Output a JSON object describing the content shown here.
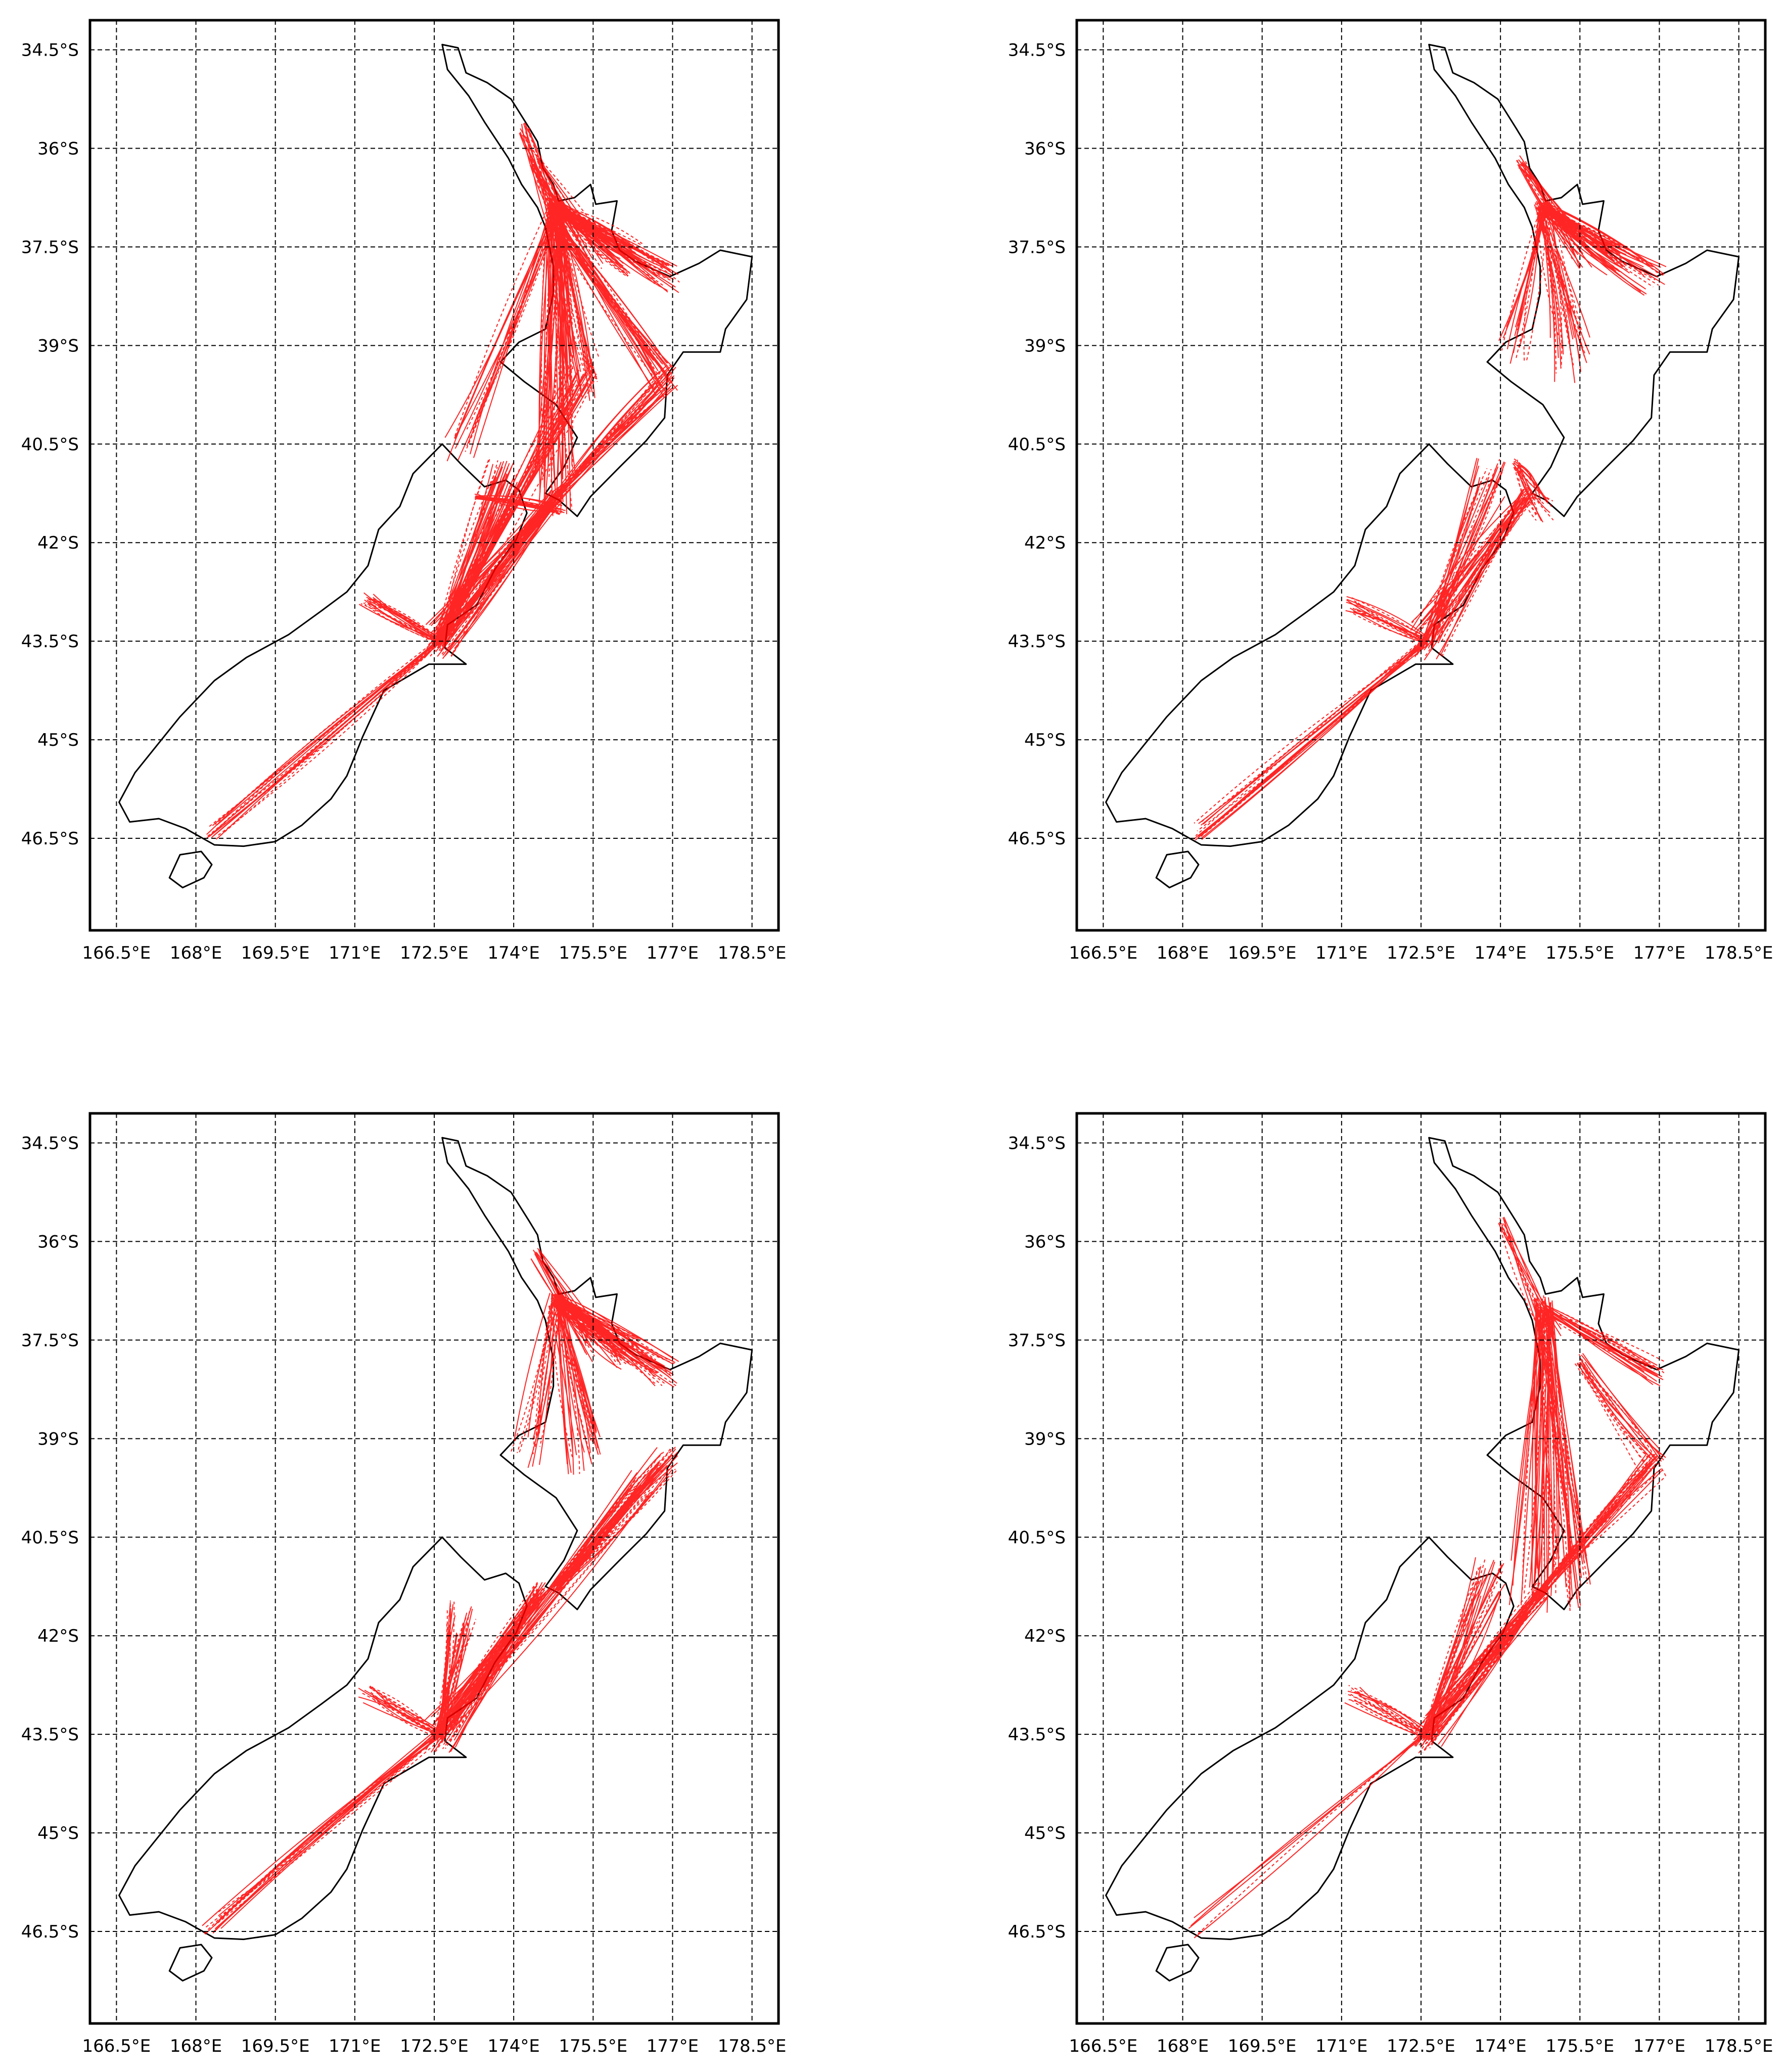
{
  "figure": {
    "panel_count": 4,
    "layout": "2x2 grid"
  },
  "axes": {
    "lon_ticks": [
      "166.5°E",
      "168°E",
      "169.5°E",
      "171°E",
      "172.5°E",
      "174°E",
      "175.5°E",
      "177°E",
      "178.5°E"
    ],
    "lat_ticks": [
      "34.5°S",
      "36°S",
      "37.5°S",
      "39°S",
      "40.5°S",
      "42°S",
      "43.5°S",
      "45°S",
      "46.5°S"
    ]
  },
  "chart_data": [
    {
      "type": "map",
      "panel": "top-left",
      "region": "New Zealand",
      "lon_range": [
        166.0,
        179.0
      ],
      "lat_range": [
        -47.9,
        -34.05
      ],
      "gridlines": true,
      "route_color": "#ff0000",
      "coastline_color": "#000000",
      "route_density": "dense",
      "route_coverage": "North Island and South Island",
      "routes": [
        {
          "from": [
            174.8,
            -36.9
          ],
          "to": [
            176.2,
            -37.7
          ],
          "n": 40,
          "spread": 0.25
        },
        {
          "from": [
            174.8,
            -36.9
          ],
          "to": [
            176.9,
            -38.0
          ],
          "n": 30,
          "spread": 0.25
        },
        {
          "from": [
            174.8,
            -36.9
          ],
          "to": [
            175.3,
            -39.5
          ],
          "n": 30,
          "spread": 0.35
        },
        {
          "from": [
            174.4,
            -36.2
          ],
          "to": [
            175.5,
            -37.6
          ],
          "n": 20,
          "spread": 0.25
        },
        {
          "from": [
            174.8,
            -36.9
          ],
          "to": [
            174.8,
            -41.2
          ],
          "n": 35,
          "spread": 0.4
        },
        {
          "from": [
            174.8,
            -37.2
          ],
          "to": [
            176.9,
            -39.5
          ],
          "n": 25,
          "spread": 0.3
        },
        {
          "from": [
            174.8,
            -41.3
          ],
          "to": [
            176.9,
            -39.5
          ],
          "n": 25,
          "spread": 0.2
        },
        {
          "from": [
            174.8,
            -41.3
          ],
          "to": [
            172.6,
            -43.5
          ],
          "n": 50,
          "spread": 0.3
        },
        {
          "from": [
            172.6,
            -43.5
          ],
          "to": [
            173.8,
            -41.0
          ],
          "n": 30,
          "spread": 0.3
        },
        {
          "from": [
            172.6,
            -43.5
          ],
          "to": [
            171.2,
            -42.9
          ],
          "n": 20,
          "spread": 0.15
        },
        {
          "from": [
            172.6,
            -43.5
          ],
          "to": [
            168.3,
            -46.4
          ],
          "n": 15,
          "spread": 0.12
        },
        {
          "from": [
            172.6,
            -43.5
          ],
          "to": [
            175.3,
            -39.5
          ],
          "n": 25,
          "spread": 0.3
        },
        {
          "from": [
            174.8,
            -36.9
          ],
          "to": [
            173.0,
            -40.5
          ],
          "n": 15,
          "spread": 0.3
        },
        {
          "from": [
            174.2,
            -35.7
          ],
          "to": [
            174.8,
            -37.0
          ],
          "n": 15,
          "spread": 0.25
        },
        {
          "from": [
            173.3,
            -41.3
          ],
          "to": [
            174.9,
            -41.5
          ],
          "n": 15,
          "spread": 0.1
        }
      ]
    },
    {
      "type": "map",
      "panel": "top-right",
      "region": "New Zealand",
      "lon_range": [
        166.0,
        179.0
      ],
      "lat_range": [
        -47.9,
        -34.05
      ],
      "gridlines": true,
      "route_color": "#ff0000",
      "coastline_color": "#000000",
      "route_density": "sparse",
      "route_coverage": "Upper North Island; Cook Strait to Southland",
      "routes": [
        {
          "from": [
            174.8,
            -36.9
          ],
          "to": [
            176.2,
            -37.7
          ],
          "n": 30,
          "spread": 0.25
        },
        {
          "from": [
            174.8,
            -36.9
          ],
          "to": [
            176.9,
            -38.0
          ],
          "n": 20,
          "spread": 0.25
        },
        {
          "from": [
            174.8,
            -36.9
          ],
          "to": [
            175.3,
            -39.2
          ],
          "n": 25,
          "spread": 0.4
        },
        {
          "from": [
            174.8,
            -36.9
          ],
          "to": [
            174.2,
            -39.0
          ],
          "n": 15,
          "spread": 0.3
        },
        {
          "from": [
            174.4,
            -36.2
          ],
          "to": [
            175.5,
            -37.6
          ],
          "n": 15,
          "spread": 0.25
        },
        {
          "from": [
            174.5,
            -41.3
          ],
          "to": [
            172.6,
            -43.5
          ],
          "n": 30,
          "spread": 0.3
        },
        {
          "from": [
            172.6,
            -43.5
          ],
          "to": [
            173.8,
            -41.0
          ],
          "n": 20,
          "spread": 0.3
        },
        {
          "from": [
            172.6,
            -43.5
          ],
          "to": [
            171.2,
            -42.9
          ],
          "n": 15,
          "spread": 0.15
        },
        {
          "from": [
            172.6,
            -43.5
          ],
          "to": [
            168.3,
            -46.4
          ],
          "n": 15,
          "spread": 0.15
        },
        {
          "from": [
            174.3,
            -40.8
          ],
          "to": [
            174.8,
            -41.5
          ],
          "n": 20,
          "spread": 0.2
        }
      ]
    },
    {
      "type": "map",
      "panel": "bottom-left",
      "region": "New Zealand",
      "lon_range": [
        166.0,
        179.0
      ],
      "lat_range": [
        -47.9,
        -34.05
      ],
      "gridlines": true,
      "route_color": "#ff0000",
      "coastline_color": "#000000",
      "route_density": "medium",
      "route_coverage": "Upper North Island; Cook Strait to Hawke's Bay and Southland",
      "routes": [
        {
          "from": [
            174.8,
            -36.9
          ],
          "to": [
            176.2,
            -37.7
          ],
          "n": 35,
          "spread": 0.25
        },
        {
          "from": [
            174.8,
            -36.9
          ],
          "to": [
            176.9,
            -38.0
          ],
          "n": 30,
          "spread": 0.25
        },
        {
          "from": [
            174.8,
            -36.9
          ],
          "to": [
            175.3,
            -39.2
          ],
          "n": 25,
          "spread": 0.35
        },
        {
          "from": [
            174.8,
            -36.9
          ],
          "to": [
            174.2,
            -39.2
          ],
          "n": 15,
          "spread": 0.3
        },
        {
          "from": [
            174.4,
            -36.2
          ],
          "to": [
            175.5,
            -37.6
          ],
          "n": 15,
          "spread": 0.25
        },
        {
          "from": [
            174.8,
            -41.3
          ],
          "to": [
            176.9,
            -39.3
          ],
          "n": 30,
          "spread": 0.2
        },
        {
          "from": [
            174.5,
            -41.3
          ],
          "to": [
            172.6,
            -43.5
          ],
          "n": 40,
          "spread": 0.3
        },
        {
          "from": [
            172.6,
            -43.5
          ],
          "to": [
            173.0,
            -41.7
          ],
          "n": 25,
          "spread": 0.3
        },
        {
          "from": [
            172.6,
            -43.5
          ],
          "to": [
            171.2,
            -42.9
          ],
          "n": 15,
          "spread": 0.15
        },
        {
          "from": [
            172.6,
            -43.5
          ],
          "to": [
            168.3,
            -46.4
          ],
          "n": 15,
          "spread": 0.2
        },
        {
          "from": [
            172.6,
            -43.5
          ],
          "to": [
            176.4,
            -39.6
          ],
          "n": 20,
          "spread": 0.25
        }
      ]
    },
    {
      "type": "map",
      "panel": "bottom-right",
      "region": "New Zealand",
      "lon_range": [
        166.0,
        179.0
      ],
      "lat_range": [
        -47.9,
        -34.05
      ],
      "gridlines": true,
      "route_color": "#ff0000",
      "coastline_color": "#000000",
      "route_density": "medium",
      "route_coverage": "North Island interior and east; Cook Strait to Canterbury",
      "routes": [
        {
          "from": [
            174.8,
            -37.0
          ],
          "to": [
            176.9,
            -38.0
          ],
          "n": 20,
          "spread": 0.2
        },
        {
          "from": [
            174.8,
            -37.0
          ],
          "to": [
            175.3,
            -41.2
          ],
          "n": 35,
          "spread": 0.45
        },
        {
          "from": [
            174.8,
            -37.0
          ],
          "to": [
            174.5,
            -41.2
          ],
          "n": 20,
          "spread": 0.35
        },
        {
          "from": [
            175.5,
            -37.8
          ],
          "to": [
            176.9,
            -39.4
          ],
          "n": 15,
          "spread": 0.25
        },
        {
          "from": [
            174.8,
            -41.3
          ],
          "to": [
            176.9,
            -39.4
          ],
          "n": 25,
          "spread": 0.2
        },
        {
          "from": [
            174.8,
            -41.3
          ],
          "to": [
            172.6,
            -43.5
          ],
          "n": 40,
          "spread": 0.3
        },
        {
          "from": [
            172.6,
            -43.5
          ],
          "to": [
            173.8,
            -41.1
          ],
          "n": 25,
          "spread": 0.3
        },
        {
          "from": [
            172.6,
            -43.5
          ],
          "to": [
            171.2,
            -42.9
          ],
          "n": 15,
          "spread": 0.15
        },
        {
          "from": [
            172.6,
            -43.5
          ],
          "to": [
            168.3,
            -46.4
          ],
          "n": 5,
          "spread": 0.2
        },
        {
          "from": [
            174.0,
            -35.7
          ],
          "to": [
            175.0,
            -37.5
          ],
          "n": 10,
          "spread": 0.2
        }
      ]
    }
  ]
}
